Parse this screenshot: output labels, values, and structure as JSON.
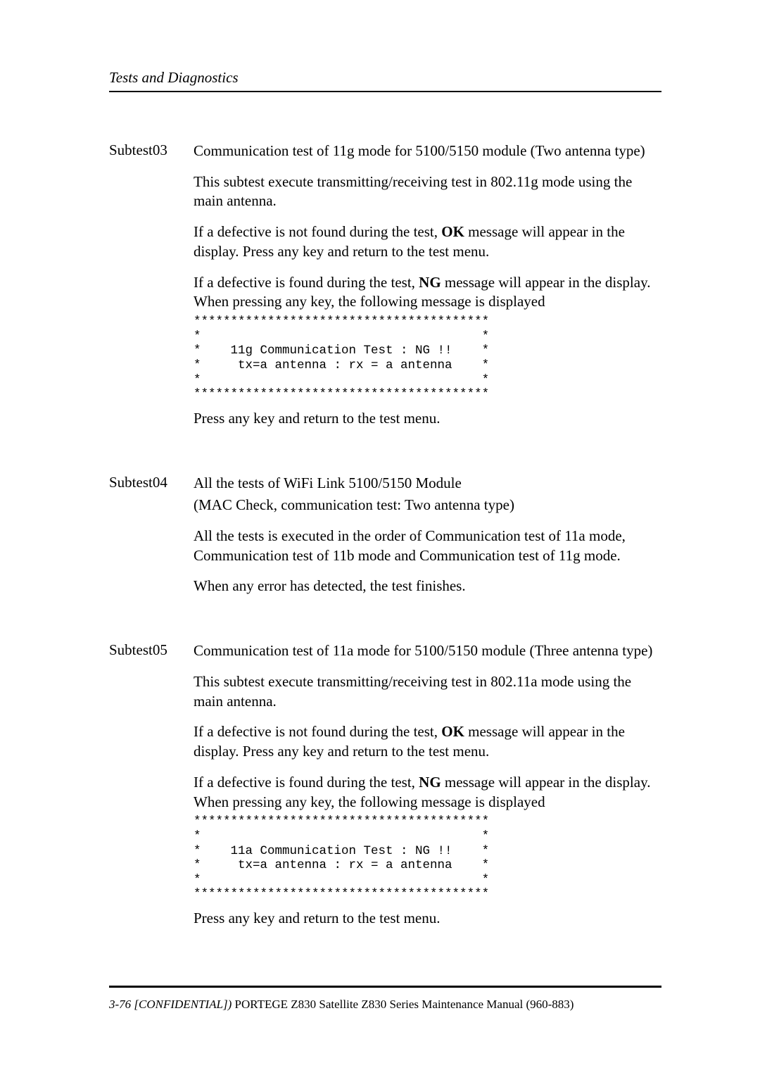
{
  "header": {
    "text": "Tests and Diagnostics"
  },
  "subtests": {
    "s03": {
      "label": "Subtest03",
      "title": "Communication test of 11g mode for 5100/5150 module (Two antenna type)",
      "p1": "This subtest execute transmitting/receiving test in 802.11g mode using the main antenna.",
      "p2a": "If a defective is not found during the test, ",
      "p2ok": "OK",
      "p2b": " message will appear in the display. Press any key and return to the test menu.",
      "p3a": "If a defective is found during the test, ",
      "p3ng": "NG",
      "p3b": " message will appear in the display. When pressing any key, the following message is displayed",
      "mono": "****************************************\n*                                      *\n*    11g Communication Test : NG !!    *\n*     tx=a antenna : rx = a antenna    *\n*                                      *\n****************************************",
      "p4": "Press any key and return to the test menu."
    },
    "s04": {
      "label": "Subtest04",
      "title_l1": "All the tests of WiFi Link 5100/5150 Module",
      "title_l2": "(MAC Check, communication test: Two antenna type)",
      "p1": "All the tests is executed in the order of Communication test of 11a mode, Communication test of 11b mode and Communication test of 11g mode.",
      "p2": "When any error has detected, the test finishes."
    },
    "s05": {
      "label": "Subtest05",
      "title": "Communication test of 11a mode for 5100/5150 module (Three antenna type)",
      "p1": "This subtest execute transmitting/receiving test in 802.11a mode using the main antenna.",
      "p2a": "If a defective is not found during the test, ",
      "p2ok": "OK",
      "p2b": " message will appear in the display. Press any key and return to the test menu.",
      "p3a": "If a defective is found during the test, ",
      "p3ng": "NG",
      "p3b": " message will appear in the display. When pressing any key, the following message is displayed",
      "mono": "****************************************\n*                                      *\n*    11a Communication Test : NG !!    *\n*     tx=a antenna : rx = a antenna    *\n*                                      *\n****************************************",
      "p4": "Press any key and return to the test menu."
    }
  },
  "footer": {
    "lead": "3-76 [CONFIDENTIAL]) ",
    "rest": "PORTEGE Z830 Satellite Z830 Series Maintenance Manual (960-883)"
  }
}
